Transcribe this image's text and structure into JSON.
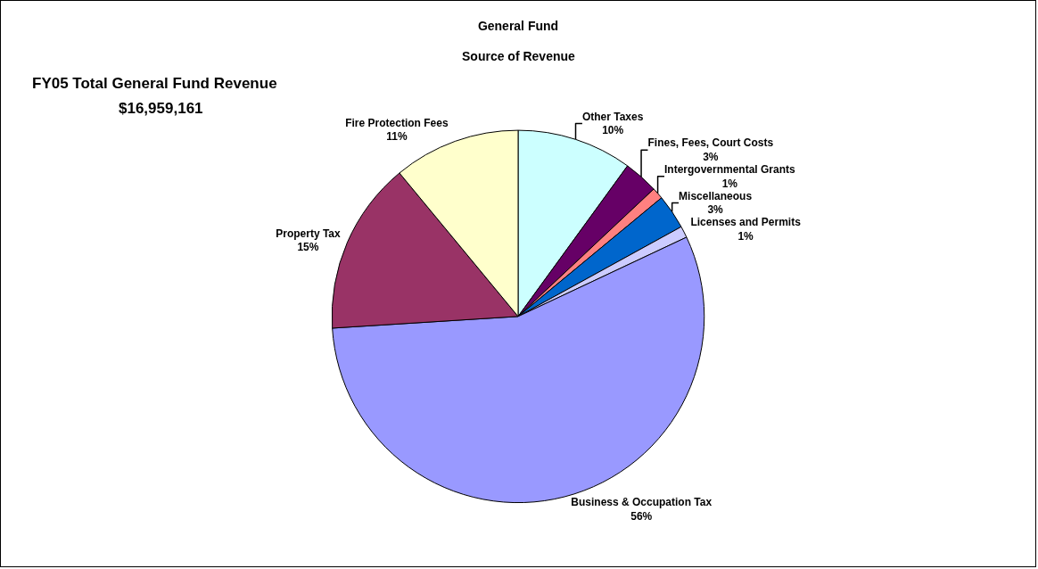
{
  "chart_data": {
    "type": "pie",
    "title": "General Fund",
    "subtitle": "Source of Revenue",
    "annotations": [
      "FY05 Total General Fund Revenue",
      "$16,959,161"
    ],
    "categories": [
      "Other Taxes",
      "Fines, Fees, Court Costs",
      "Intergovernmental Grants",
      "Miscellaneous",
      "Licenses and Permits",
      "Business & Occupation Tax",
      "Property Tax",
      "Fire Protection Fees"
    ],
    "values": [
      10,
      3,
      1,
      3,
      1,
      56,
      15,
      11
    ],
    "value_labels": [
      "10%",
      "3%",
      "1%",
      "3%",
      "1%",
      "56%",
      "15%",
      "11%"
    ],
    "colors": [
      "#ccffff",
      "#660066",
      "#ff8080",
      "#0066cc",
      "#ccccff",
      "#9999ff",
      "#993366",
      "#ffffcc"
    ]
  }
}
